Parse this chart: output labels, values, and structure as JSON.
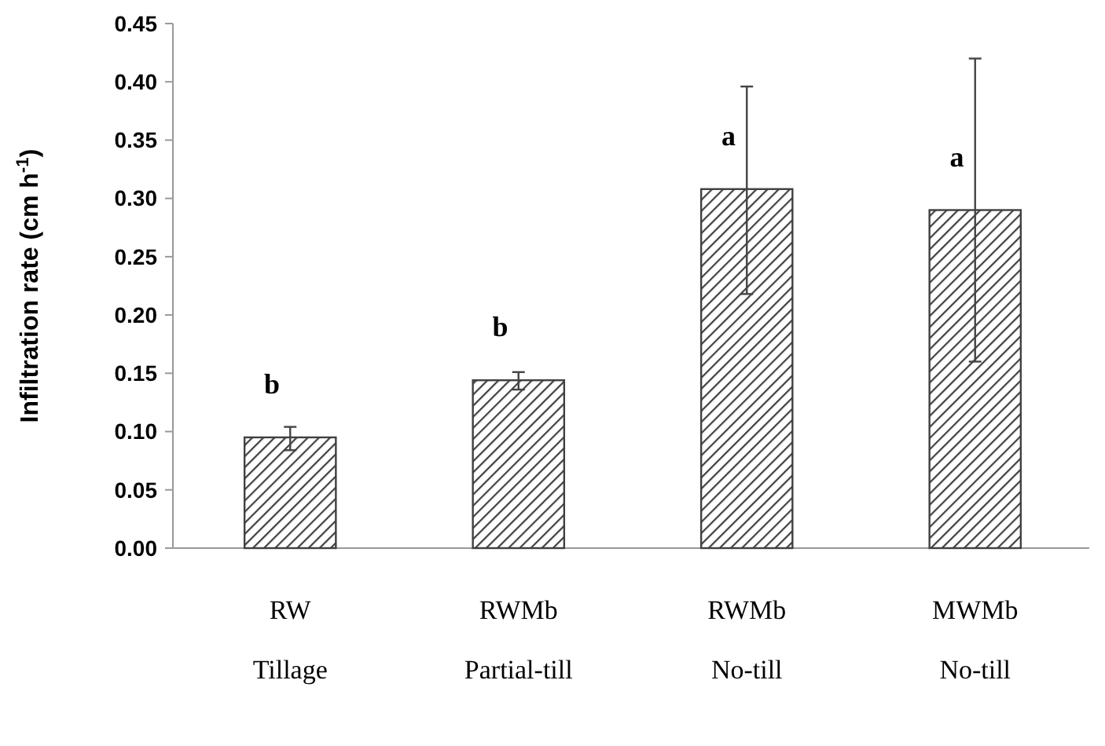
{
  "chart_data": {
    "type": "bar",
    "ylabel": "Infiltration rate (cm h$^{-1}$)",
    "categories": [
      "RW\nTillage",
      "RWMb\nPartial-till",
      "RWMb\nNo-till",
      "MWMb\nNo-till"
    ],
    "values": [
      0.095,
      0.144,
      0.308,
      0.29
    ],
    "errors": [
      [
        0.084,
        0.104
      ],
      [
        0.136,
        0.151
      ],
      [
        0.218,
        0.396
      ],
      [
        0.16,
        0.42
      ]
    ],
    "color": "#404040",
    "ylim": [
      0,
      0.45
    ],
    "yticks": [
      {
        "value": 0,
        "label": "0.00"
      },
      {
        "value": 0.05,
        "label": "0.05"
      },
      {
        "value": 0.1,
        "label": "0.10"
      },
      {
        "value": 0.15,
        "label": "0.15"
      },
      {
        "value": 0.2,
        "label": "0.20"
      },
      {
        "value": 0.25,
        "label": "0.25"
      },
      {
        "value": 0.3,
        "label": "0.30"
      },
      {
        "value": 0.35,
        "label": "0.35"
      },
      {
        "value": 0.4,
        "label": "0.40"
      },
      {
        "value": 0.45,
        "label": "0.45"
      }
    ],
    "annotations": [
      "b",
      "b",
      "a",
      "a"
    ]
  }
}
